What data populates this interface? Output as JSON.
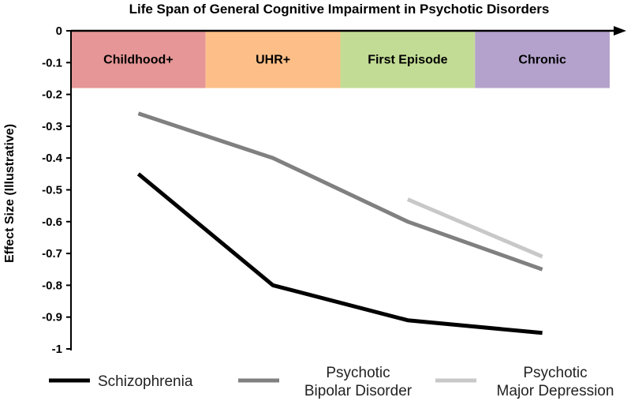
{
  "chart_data": {
    "type": "line",
    "title": "Life Span of General Cognitive Impairment in Psychotic Disorders",
    "xlabel": "",
    "ylabel": "Effect Size (Illustrative)",
    "ylim": [
      -1,
      0
    ],
    "yticks": [
      "0",
      "-0.1",
      "-0.2",
      "-0.3",
      "-0.4",
      "-0.5",
      "-0.6",
      "-0.7",
      "-0.8",
      "-0.9",
      "-1"
    ],
    "grid": false,
    "legend_position": "bottom",
    "categories": [
      "Childhood+",
      "UHR+",
      "First Episode",
      "Chronic"
    ],
    "phase_colors": [
      "#e69696",
      "#fdbf87",
      "#c3dc95",
      "#b4a2cc"
    ],
    "series": [
      {
        "name": "Schizophrenia",
        "name_lines": [
          "Schizophrenia"
        ],
        "color": "#000000",
        "values": [
          -0.45,
          -0.8,
          -0.91,
          -0.95
        ]
      },
      {
        "name": "Psychotic Bipolar Disorder",
        "name_lines": [
          "Psychotic",
          "Bipolar Disorder"
        ],
        "color": "#808080",
        "values": [
          -0.26,
          -0.4,
          -0.6,
          -0.75
        ]
      },
      {
        "name": "Psychotic Major Depression",
        "name_lines": [
          "Psychotic",
          "Major Depression"
        ],
        "color": "#c8c8c8",
        "values": [
          null,
          null,
          -0.53,
          -0.71
        ]
      }
    ]
  }
}
